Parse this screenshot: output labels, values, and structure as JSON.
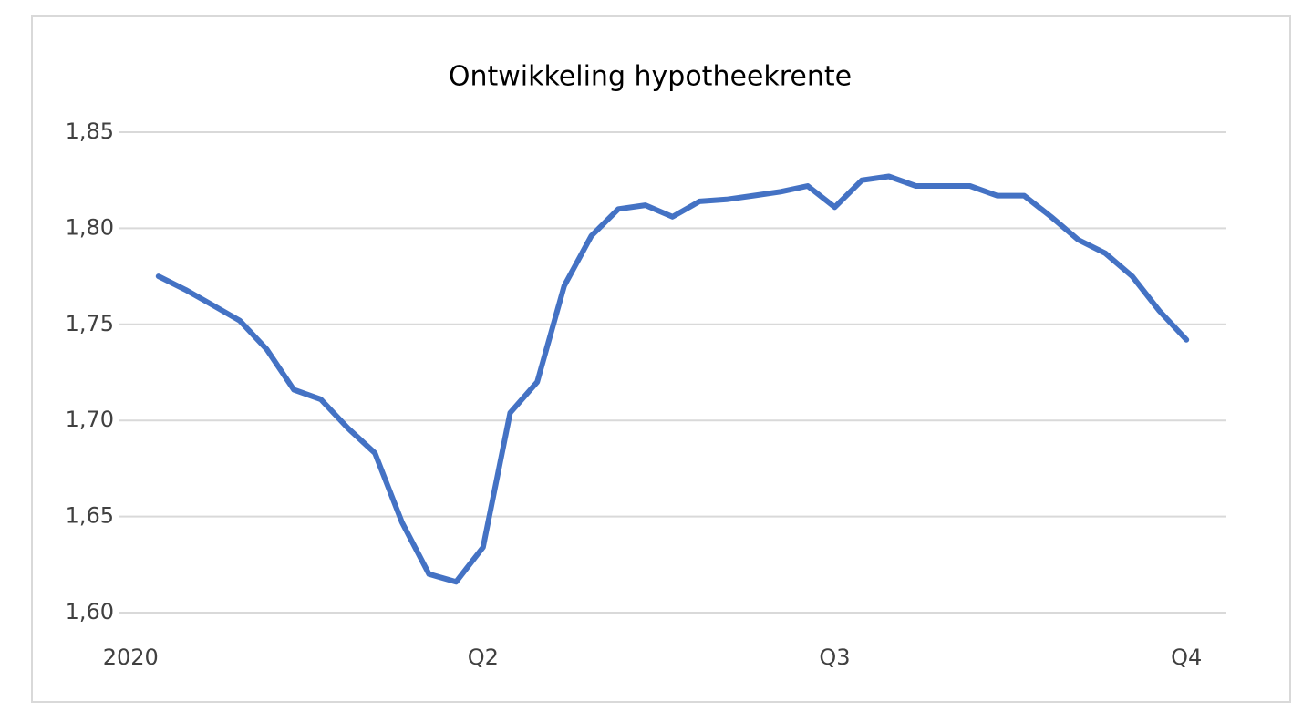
{
  "chart_data": {
    "type": "line",
    "title": "Ontwikkeling hypotheekrente",
    "categories": [
      "2020",
      null,
      null,
      null,
      null,
      null,
      null,
      null,
      null,
      null,
      null,
      null,
      "Q2",
      null,
      null,
      null,
      null,
      null,
      null,
      null,
      null,
      null,
      null,
      null,
      null,
      "Q3",
      null,
      null,
      null,
      null,
      null,
      null,
      null,
      null,
      null,
      null,
      null,
      null,
      "Q4"
    ],
    "series": [
      {
        "name": "hypotheekrente",
        "color": "#4472c4",
        "values": [
          1.775,
          1.768,
          1.76,
          1.752,
          1.737,
          1.716,
          1.711,
          1.696,
          1.683,
          1.647,
          1.62,
          1.616,
          1.634,
          1.704,
          1.72,
          1.77,
          1.796,
          1.81,
          1.812,
          1.806,
          1.814,
          1.815,
          1.817,
          1.819,
          1.822,
          1.811,
          1.825,
          1.827,
          1.822,
          1.822,
          1.822,
          1.817,
          1.817,
          1.806,
          1.794,
          1.787,
          1.775,
          1.757,
          1.742
        ]
      }
    ],
    "ylim": [
      1.6,
      1.85
    ],
    "yticks": [
      {
        "value": 1.6,
        "label": "1,60"
      },
      {
        "value": 1.65,
        "label": "1,65"
      },
      {
        "value": 1.7,
        "label": "1,70"
      },
      {
        "value": 1.75,
        "label": "1,75"
      },
      {
        "value": 1.8,
        "label": "1,80"
      },
      {
        "value": 1.85,
        "label": "1,85"
      }
    ],
    "grid": true
  }
}
